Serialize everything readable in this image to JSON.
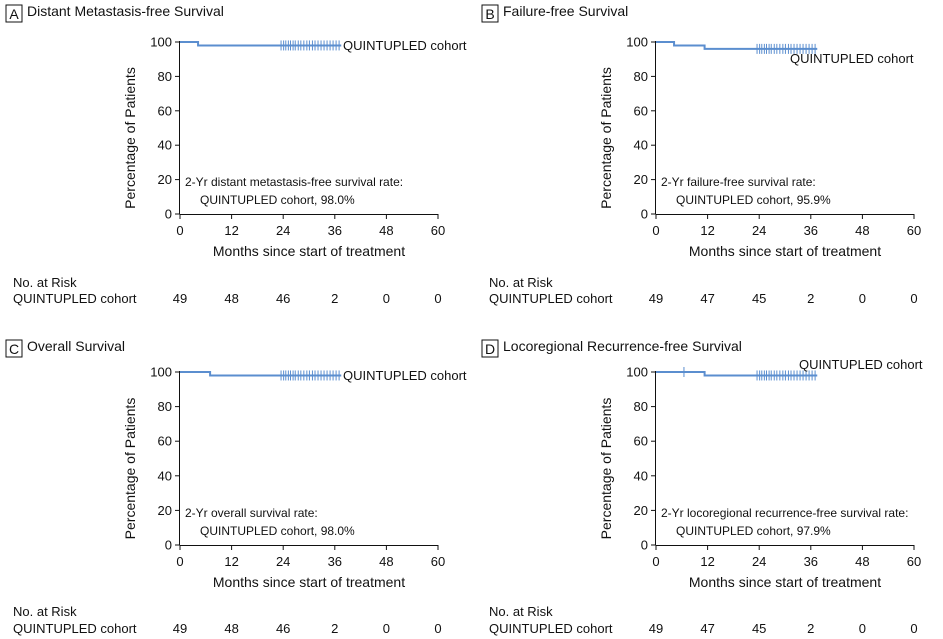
{
  "chart_data": [
    {
      "type": "line",
      "panel_letter": "A",
      "title": "Distant Metastasis-free Survival",
      "xlabel": "Months since start of treatment",
      "ylabel": "Percentage of Patients",
      "xlim": [
        0,
        60
      ],
      "ylim": [
        0,
        100
      ],
      "xticks": [
        "0",
        "12",
        "24",
        "36",
        "48",
        "60"
      ],
      "yticks": [
        "0",
        "20",
        "40",
        "60",
        "80",
        "100"
      ],
      "grid": false,
      "color": "#5b8ecf",
      "series": [
        {
          "name": "QUINTUPLED cohort",
          "step_x": [
            0,
            4.2,
            37.5
          ],
          "step_y": [
            100,
            98,
            98
          ],
          "censor_x": [
            23.5,
            24.1,
            24.6,
            25.2,
            25.7,
            26.3,
            26.8,
            27.5,
            28.1,
            28.8,
            29.5,
            30.1,
            30.8,
            31.4,
            32.1,
            32.8,
            33.5,
            34.2,
            34.9,
            35.6,
            36.3,
            37
          ],
          "censor_y": [
            98,
            98,
            98,
            98,
            98,
            98,
            98,
            98,
            98,
            98,
            98,
            98,
            98,
            98,
            98,
            98,
            98,
            98,
            98,
            98,
            98,
            98
          ]
        }
      ],
      "series_label": "QUINTUPLED cohort",
      "annotation_lines": [
        "2-Yr distant metastasis-free survival rate:",
        "QUINTUPLED cohort, 98.0%"
      ],
      "risk_table": {
        "header": "No. at Risk",
        "row_label": "QUINTUPLED cohort",
        "values": [
          "49",
          "48",
          "46",
          "2",
          "0",
          "0"
        ]
      }
    },
    {
      "type": "line",
      "panel_letter": "B",
      "title": "Failure-free Survival",
      "xlabel": "Months since start of treatment",
      "ylabel": "Percentage of Patients",
      "xlim": [
        0,
        60
      ],
      "ylim": [
        0,
        100
      ],
      "xticks": [
        "0",
        "12",
        "24",
        "36",
        "48",
        "60"
      ],
      "yticks": [
        "0",
        "20",
        "40",
        "60",
        "80",
        "100"
      ],
      "grid": false,
      "color": "#5b8ecf",
      "series": [
        {
          "name": "QUINTUPLED cohort",
          "step_x": [
            0,
            4.2,
            11.3,
            37.5
          ],
          "step_y": [
            100,
            98,
            96,
            96
          ],
          "censor_x": [
            23.5,
            24.1,
            24.6,
            25.2,
            25.7,
            26.3,
            26.8,
            27.5,
            28.1,
            28.8,
            29.5,
            30.1,
            30.8,
            31.4,
            32.1,
            32.8,
            33.5,
            34.2,
            34.9,
            35.6,
            36.3,
            37
          ],
          "censor_y": [
            96,
            96,
            96,
            96,
            96,
            96,
            96,
            96,
            96,
            96,
            96,
            96,
            96,
            96,
            96,
            96,
            96,
            96,
            96,
            96,
            96,
            96
          ]
        }
      ],
      "series_label": "QUINTUPLED cohort",
      "annotation_lines": [
        "2-Yr failure-free survival rate:",
        "QUINTUPLED cohort, 95.9%"
      ],
      "risk_table": {
        "header": "No. at Risk",
        "row_label": "QUINTUPLED cohort",
        "values": [
          "49",
          "47",
          "45",
          "2",
          "0",
          "0"
        ]
      }
    },
    {
      "type": "line",
      "panel_letter": "C",
      "title": "Overall Survival",
      "xlabel": "Months since start of treatment",
      "ylabel": "Percentage of Patients",
      "xlim": [
        0,
        60
      ],
      "ylim": [
        0,
        100
      ],
      "xticks": [
        "0",
        "12",
        "24",
        "36",
        "48",
        "60"
      ],
      "yticks": [
        "0",
        "20",
        "40",
        "60",
        "80",
        "100"
      ],
      "grid": false,
      "color": "#5b8ecf",
      "series": [
        {
          "name": "QUINTUPLED cohort",
          "step_x": [
            0,
            7,
            37.5
          ],
          "step_y": [
            100,
            98,
            98
          ],
          "censor_x": [
            23.5,
            24.1,
            24.6,
            25.2,
            25.7,
            26.3,
            26.8,
            27.5,
            28.1,
            28.8,
            29.5,
            30.1,
            30.8,
            31.4,
            32.1,
            32.8,
            33.5,
            34.2,
            34.9,
            35.6,
            36.3,
            37
          ],
          "censor_y": [
            98,
            98,
            98,
            98,
            98,
            98,
            98,
            98,
            98,
            98,
            98,
            98,
            98,
            98,
            98,
            98,
            98,
            98,
            98,
            98,
            98,
            98
          ]
        }
      ],
      "series_label": "QUINTUPLED cohort",
      "annotation_lines": [
        "2-Yr overall survival rate:",
        "QUINTUPLED cohort, 98.0%"
      ],
      "risk_table": {
        "header": "No. at Risk",
        "row_label": "QUINTUPLED cohort",
        "values": [
          "49",
          "48",
          "46",
          "2",
          "0",
          "0"
        ]
      }
    },
    {
      "type": "line",
      "panel_letter": "D",
      "title": "Locoregional Recurrence-free Survival",
      "xlabel": "Months since start of treatment",
      "ylabel": "Percentage of Patients",
      "xlim": [
        0,
        60
      ],
      "ylim": [
        0,
        100
      ],
      "xticks": [
        "0",
        "12",
        "24",
        "36",
        "48",
        "60"
      ],
      "yticks": [
        "0",
        "20",
        "40",
        "60",
        "80",
        "100"
      ],
      "grid": false,
      "color": "#5b8ecf",
      "series": [
        {
          "name": "QUINTUPLED cohort",
          "step_x": [
            0,
            11.3,
            37.5
          ],
          "step_y": [
            100,
            98,
            98
          ],
          "censor_x": [
            6.5,
            23.5,
            24.1,
            24.6,
            25.2,
            25.7,
            26.3,
            26.8,
            27.5,
            28.1,
            28.8,
            29.5,
            30.1,
            30.8,
            31.4,
            32.1,
            32.8,
            33.5,
            34.2,
            34.9,
            35.6,
            36.3,
            37
          ],
          "censor_y": [
            100,
            98,
            98,
            98,
            98,
            98,
            98,
            98,
            98,
            98,
            98,
            98,
            98,
            98,
            98,
            98,
            98,
            98,
            98,
            98,
            98,
            98,
            98
          ]
        }
      ],
      "series_label": "QUINTUPLED cohort",
      "annotation_lines": [
        "2-Yr locoregional recurrence-free survival rate:",
        "QUINTUPLED cohort, 97.9%"
      ],
      "risk_table": {
        "header": "No. at Risk",
        "row_label": "QUINTUPLED cohort",
        "values": [
          "49",
          "47",
          "45",
          "2",
          "0",
          "0"
        ]
      }
    }
  ]
}
